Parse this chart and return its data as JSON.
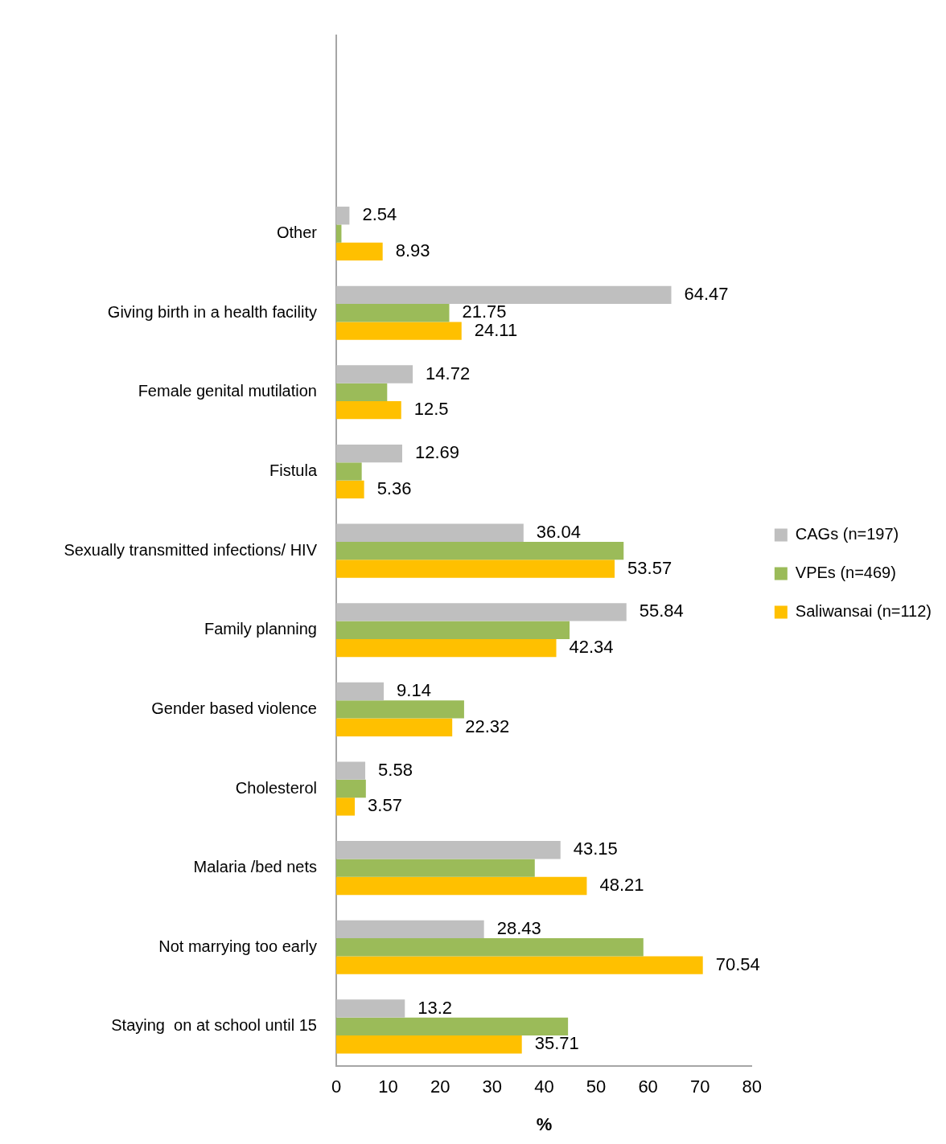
{
  "chart_data": {
    "type": "bar",
    "orientation": "horizontal",
    "xlabel": "%",
    "categories": [
      null,
      null,
      "Other",
      "Giving birth in a health facility",
      "Female genital mutilation",
      "Fistula",
      "Sexually transmitted infections/ HIV",
      "Family planning",
      "Gender based violence",
      "Cholesterol",
      "Malaria /bed nets",
      "Not marrying too early",
      "Staying  on at school until 15"
    ],
    "series": [
      {
        "name": "CAGs (n=197)",
        "color": "#bfbfbf",
        "values": [
          null,
          null,
          2.54,
          64.47,
          14.72,
          12.69,
          36.04,
          55.84,
          9.14,
          5.58,
          43.15,
          28.43,
          13.2
        ],
        "value_labels": [
          null,
          null,
          "2.54",
          "64.47",
          "14.72",
          "12.69",
          "36.04",
          "55.84",
          "9.14",
          "5.58",
          "43.15",
          "28.43",
          "13.2"
        ]
      },
      {
        "name": "VPEs (n=469)",
        "color": "#9bbb59",
        "values": [
          null,
          null,
          1.0,
          21.75,
          9.8,
          4.9,
          55.3,
          44.9,
          24.6,
          5.7,
          38.2,
          59.1,
          44.6
        ],
        "value_labels": [
          null,
          null,
          null,
          "21.75",
          null,
          null,
          null,
          null,
          null,
          null,
          null,
          null,
          null
        ]
      },
      {
        "name": "Saliwansai (n=112)",
        "color": "#ffc000",
        "values": [
          null,
          null,
          8.93,
          24.11,
          12.5,
          5.36,
          53.57,
          42.34,
          22.32,
          3.57,
          48.21,
          70.54,
          35.71
        ],
        "value_labels": [
          null,
          null,
          "8.93",
          "24.11",
          "12.5",
          "5.36",
          "53.57",
          "42.34",
          "22.32",
          "3.57",
          "48.21",
          "70.54",
          "35.71"
        ]
      }
    ],
    "xlim": [
      0,
      80
    ],
    "xticks": [
      0,
      10,
      20,
      30,
      40,
      50,
      60,
      70,
      80
    ],
    "grid": false,
    "legend": "right"
  }
}
